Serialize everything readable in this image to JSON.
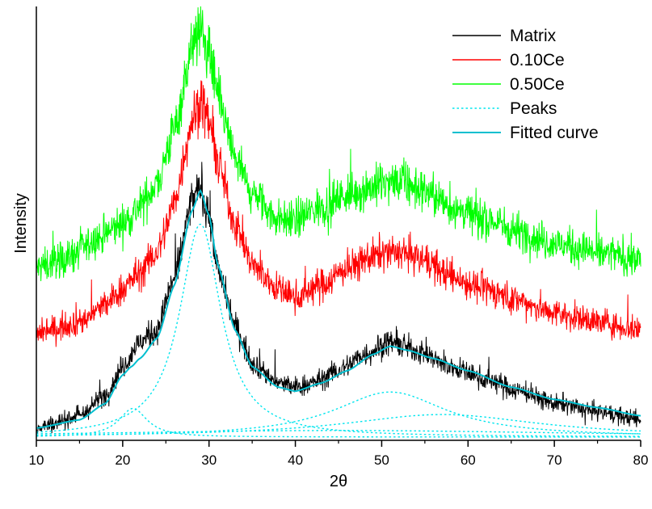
{
  "chart_data": {
    "type": "line",
    "xlabel": "2θ",
    "ylabel": "Intensity",
    "xlim": [
      10,
      80
    ],
    "x_ticks": [
      10,
      20,
      30,
      40,
      50,
      60,
      70,
      80
    ],
    "y_ticks": [],
    "grid": false,
    "legend_position": "top-right",
    "series": [
      {
        "name": "Matrix",
        "color": "#000000",
        "style": "solid-noisy",
        "points": [
          [
            10,
            0.03
          ],
          [
            15,
            0.06
          ],
          [
            18,
            0.11
          ],
          [
            20,
            0.18
          ],
          [
            22,
            0.24
          ],
          [
            24,
            0.27
          ],
          [
            26,
            0.4
          ],
          [
            28,
            0.58
          ],
          [
            29,
            0.62
          ],
          [
            30,
            0.55
          ],
          [
            31,
            0.42
          ],
          [
            33,
            0.28
          ],
          [
            35,
            0.19
          ],
          [
            38,
            0.14
          ],
          [
            40,
            0.13
          ],
          [
            42,
            0.14
          ],
          [
            45,
            0.17
          ],
          [
            48,
            0.21
          ],
          [
            51,
            0.24
          ],
          [
            54,
            0.22
          ],
          [
            58,
            0.18
          ],
          [
            62,
            0.15
          ],
          [
            66,
            0.12
          ],
          [
            70,
            0.09
          ],
          [
            75,
            0.07
          ],
          [
            80,
            0.05
          ]
        ]
      },
      {
        "name": "0.10Ce",
        "color": "#ff0000",
        "style": "solid-noisy",
        "points": [
          [
            10,
            0.26
          ],
          [
            15,
            0.29
          ],
          [
            18,
            0.33
          ],
          [
            20,
            0.37
          ],
          [
            22,
            0.41
          ],
          [
            24,
            0.46
          ],
          [
            26,
            0.58
          ],
          [
            28,
            0.78
          ],
          [
            29,
            0.83
          ],
          [
            30,
            0.78
          ],
          [
            31,
            0.68
          ],
          [
            33,
            0.53
          ],
          [
            35,
            0.43
          ],
          [
            38,
            0.37
          ],
          [
            40,
            0.35
          ],
          [
            43,
            0.38
          ],
          [
            46,
            0.42
          ],
          [
            49,
            0.45
          ],
          [
            52,
            0.46
          ],
          [
            55,
            0.44
          ],
          [
            58,
            0.4
          ],
          [
            62,
            0.37
          ],
          [
            66,
            0.34
          ],
          [
            70,
            0.31
          ],
          [
            75,
            0.29
          ],
          [
            80,
            0.27
          ]
        ]
      },
      {
        "name": "0.50Ce",
        "color": "#00ff00",
        "style": "solid-noisy",
        "points": [
          [
            10,
            0.42
          ],
          [
            14,
            0.45
          ],
          [
            17,
            0.49
          ],
          [
            20,
            0.53
          ],
          [
            22,
            0.57
          ],
          [
            24,
            0.63
          ],
          [
            26,
            0.76
          ],
          [
            28,
            0.96
          ],
          [
            29,
            1.0
          ],
          [
            30,
            0.95
          ],
          [
            31,
            0.84
          ],
          [
            33,
            0.69
          ],
          [
            35,
            0.6
          ],
          [
            38,
            0.54
          ],
          [
            40,
            0.54
          ],
          [
            43,
            0.57
          ],
          [
            46,
            0.6
          ],
          [
            49,
            0.62
          ],
          [
            52,
            0.63
          ],
          [
            55,
            0.61
          ],
          [
            58,
            0.57
          ],
          [
            62,
            0.54
          ],
          [
            66,
            0.51
          ],
          [
            70,
            0.48
          ],
          [
            75,
            0.46
          ],
          [
            80,
            0.44
          ]
        ]
      },
      {
        "name": "Peaks",
        "color": "#00e5ee",
        "style": "dotted",
        "components": [
          {
            "center": 21.2,
            "height": 0.07,
            "fwhm": 4.0
          },
          {
            "center": 29.0,
            "height": 0.52,
            "fwhm": 5.8
          },
          {
            "center": 51.0,
            "height": 0.11,
            "fwhm": 16.0
          },
          {
            "center": 57.0,
            "height": 0.055,
            "fwhm": 28.0
          },
          {
            "center": 45.0,
            "height": 0.016,
            "fwhm": 70.0
          }
        ],
        "baseline": 0.008
      },
      {
        "name": "Fitted curve",
        "color": "#00bfcf",
        "style": "solid",
        "points": [
          [
            10,
            0.03
          ],
          [
            15,
            0.05
          ],
          [
            18,
            0.09
          ],
          [
            20,
            0.16
          ],
          [
            21,
            0.18
          ],
          [
            22,
            0.2
          ],
          [
            24,
            0.25
          ],
          [
            26,
            0.38
          ],
          [
            28,
            0.56
          ],
          [
            29,
            0.61
          ],
          [
            30,
            0.55
          ],
          [
            31,
            0.43
          ],
          [
            33,
            0.27
          ],
          [
            35,
            0.18
          ],
          [
            38,
            0.13
          ],
          [
            40,
            0.12
          ],
          [
            43,
            0.14
          ],
          [
            46,
            0.17
          ],
          [
            49,
            0.21
          ],
          [
            51,
            0.23
          ],
          [
            53,
            0.22
          ],
          [
            56,
            0.2
          ],
          [
            60,
            0.17
          ],
          [
            65,
            0.13
          ],
          [
            70,
            0.1
          ],
          [
            75,
            0.08
          ],
          [
            80,
            0.06
          ]
        ]
      }
    ]
  }
}
